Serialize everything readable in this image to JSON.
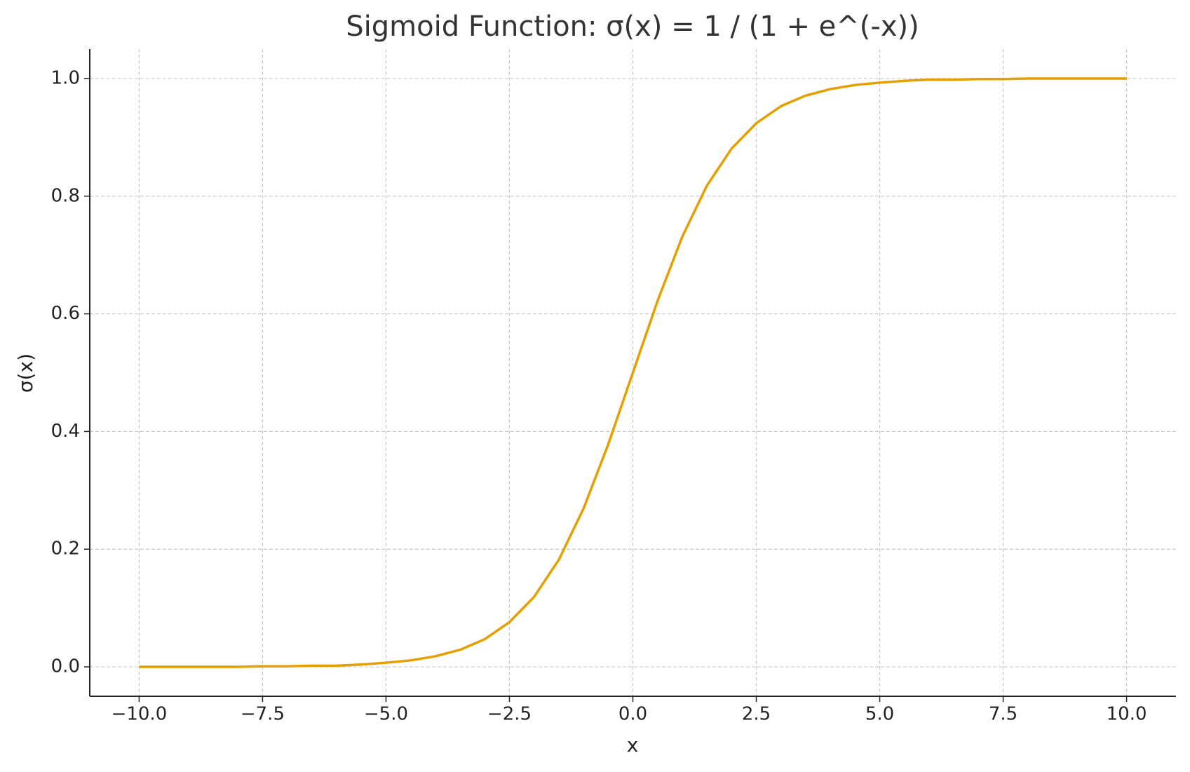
{
  "chart_data": {
    "type": "line",
    "title": "Sigmoid Function: σ(x) = 1 / (1 + e^(-x))",
    "xlabel": "x",
    "ylabel": "σ(x)",
    "x": [
      -10,
      -9.5,
      -9,
      -8.5,
      -8,
      -7.5,
      -7,
      -6.5,
      -6,
      -5.5,
      -5,
      -4.5,
      -4,
      -3.5,
      -3,
      -2.5,
      -2,
      -1.5,
      -1,
      -0.5,
      0,
      0.5,
      1,
      1.5,
      2,
      2.5,
      3,
      3.5,
      4,
      4.5,
      5,
      5.5,
      6,
      6.5,
      7,
      7.5,
      8,
      8.5,
      9,
      9.5,
      10
    ],
    "values": [
      0,
      0,
      0,
      0,
      0,
      0.001,
      0.001,
      0.002,
      0.002,
      0.004,
      0.007,
      0.011,
      0.018,
      0.029,
      0.047,
      0.076,
      0.119,
      0.182,
      0.269,
      0.378,
      0.5,
      0.622,
      0.731,
      0.818,
      0.881,
      0.924,
      0.953,
      0.971,
      0.982,
      0.989,
      0.993,
      0.996,
      0.998,
      0.998,
      0.999,
      0.999,
      1,
      1,
      1,
      1,
      1
    ],
    "color": "#e69f00",
    "xlim": [
      -11,
      11
    ],
    "ylim": [
      -0.05,
      1.05
    ],
    "xticks": [
      {
        "value": -10,
        "label": "−10.0"
      },
      {
        "value": -7.5,
        "label": "−7.5"
      },
      {
        "value": -5,
        "label": "−5.0"
      },
      {
        "value": -2.5,
        "label": "−2.5"
      },
      {
        "value": 0,
        "label": "0.0"
      },
      2.5,
      {
        "value": 5,
        "label": "5.0"
      },
      7.5,
      {
        "value": 10,
        "label": "10.0"
      }
    ],
    "yticks": [
      {
        "value": 0,
        "label": "0.0"
      },
      0.2,
      0.4,
      0.6,
      0.8,
      {
        "value": 1,
        "label": "1.0"
      }
    ],
    "grid": true
  }
}
